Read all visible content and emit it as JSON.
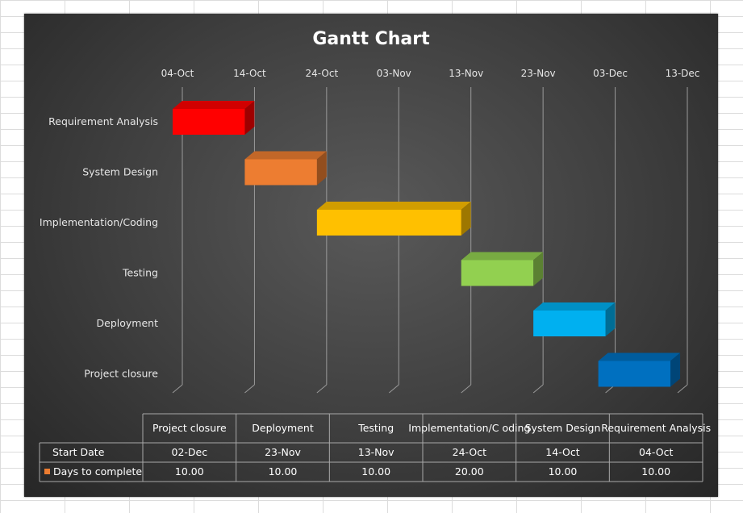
{
  "chart_data": {
    "type": "bar",
    "subtype": "gantt-stacked-3d",
    "title": "Gantt Chart",
    "x_axis": {
      "type": "date",
      "ticks": [
        "04-Oct",
        "14-Oct",
        "24-Oct",
        "03-Nov",
        "13-Nov",
        "23-Nov",
        "03-Dec",
        "13-Dec"
      ],
      "tick_step_days": 10,
      "position": "top",
      "gridlines": true
    },
    "categories": [
      "Requirement Analysis",
      "System Design",
      "Implementation/Coding",
      "Testing",
      "Deployment",
      "Project closure"
    ],
    "series": [
      {
        "name": "Start Date",
        "values": [
          "04-Oct",
          "14-Oct",
          "24-Oct",
          "13-Nov",
          "23-Nov",
          "02-Dec"
        ],
        "visible": false
      },
      {
        "name": "Days to complete",
        "values": [
          10,
          10,
          20,
          10,
          10,
          10
        ],
        "legend_color": "#ED7D31"
      }
    ],
    "bar_colors": [
      "#FF0000",
      "#ED7D31",
      "#FFC000",
      "#92D050",
      "#00B0F0",
      "#0070C0"
    ],
    "data_table": {
      "columns": [
        "Project closure",
        "Deployment",
        "Testing",
        "Implementation/C oding",
        "System Design",
        "Requirement Analysis"
      ],
      "rows": [
        {
          "label": "Start Date",
          "values": [
            "02-Dec",
            "23-Nov",
            "13-Nov",
            "24-Oct",
            "14-Oct",
            "04-Oct"
          ]
        },
        {
          "label": "Days to complete",
          "values": [
            "10.00",
            "10.00",
            "10.00",
            "20.00",
            "10.00",
            "10.00"
          ],
          "legend_color": "#ED7D31"
        }
      ]
    },
    "legend": "none",
    "background": "dark-gradient"
  }
}
